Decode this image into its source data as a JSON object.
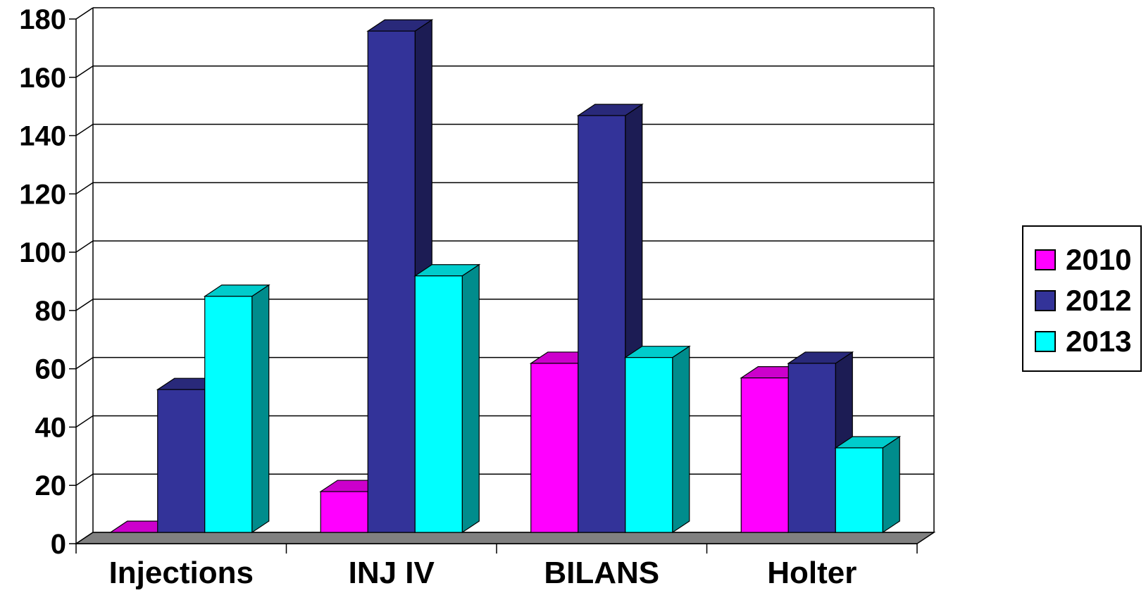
{
  "chart_data": {
    "type": "bar",
    "categories": [
      "Injections",
      "INJ IV",
      "BILANS",
      "Holter"
    ],
    "series": [
      {
        "name": "2010",
        "values": [
          0,
          14,
          58,
          53
        ],
        "color": "#FF00FF"
      },
      {
        "name": "2012",
        "values": [
          49,
          172,
          143,
          58
        ],
        "color": "#333399"
      },
      {
        "name": "2013",
        "values": [
          81,
          88,
          60,
          29
        ],
        "color": "#00FFFF"
      }
    ],
    "ylim": [
      0,
      180
    ],
    "yticks": [
      "0",
      "20",
      "40",
      "60",
      "80",
      "100",
      "120",
      "140",
      "160",
      "180"
    ],
    "grid": true,
    "legend_position": "right",
    "three_d": true
  }
}
